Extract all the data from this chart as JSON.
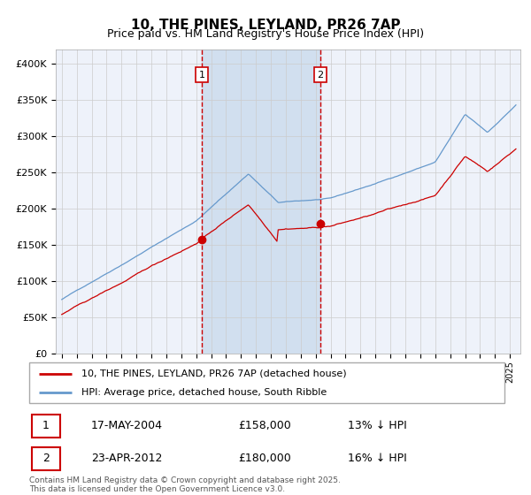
{
  "title": "10, THE PINES, LEYLAND, PR26 7AP",
  "subtitle": "Price paid vs. HM Land Registry's House Price Index (HPI)",
  "footer": "Contains HM Land Registry data © Crown copyright and database right 2025.\nThis data is licensed under the Open Government Licence v3.0.",
  "legend_label_red": "10, THE PINES, LEYLAND, PR26 7AP (detached house)",
  "legend_label_blue": "HPI: Average price, detached house, South Ribble",
  "sale1_date": "17-MAY-2004",
  "sale1_price": "£158,000",
  "sale1_note": "13% ↓ HPI",
  "sale2_date": "23-APR-2012",
  "sale2_price": "£180,000",
  "sale2_note": "16% ↓ HPI",
  "sale1_x": 2004.38,
  "sale2_x": 2012.32,
  "sale1_price_val": 158000,
  "sale2_price_val": 180000,
  "ylim_min": 0,
  "ylim_max": 420000,
  "plot_bg_color": "#eef2fa",
  "shade_color": "#ccdcee",
  "grid_color": "#cccccc",
  "red_color": "#cc0000",
  "blue_color": "#6699cc",
  "dashed_color": "#cc0000"
}
